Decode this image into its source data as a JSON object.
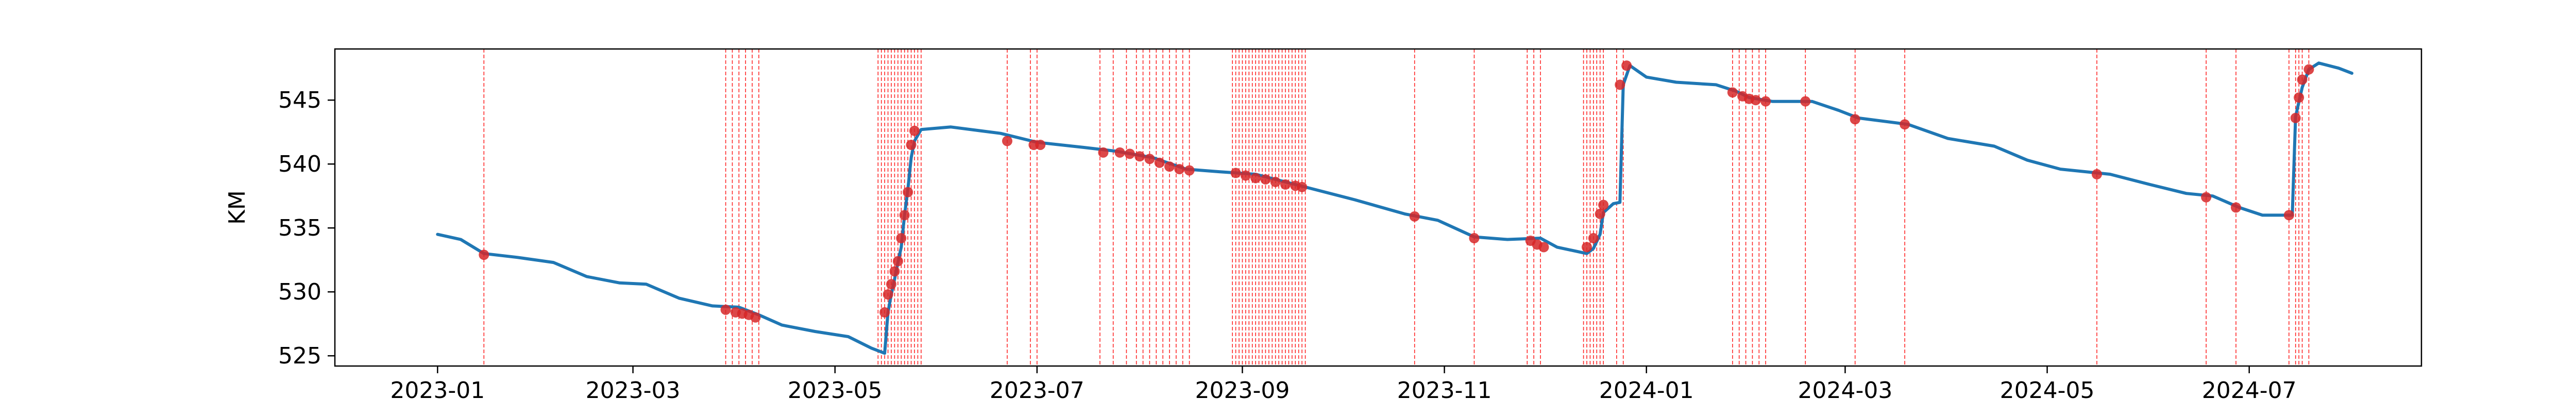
{
  "chart_data": {
    "type": "line",
    "title": "",
    "xlabel": "",
    "ylabel": "KM",
    "xlim": [
      "2022-12-01",
      "2024-08-22"
    ],
    "ylim": [
      524.2,
      549.0
    ],
    "x_ticks": [
      "2023-01",
      "2023-03",
      "2023-05",
      "2023-07",
      "2023-09",
      "2023-11",
      "2024-01",
      "2024-03",
      "2024-05",
      "2024-07"
    ],
    "y_ticks": [
      525,
      530,
      535,
      540,
      545
    ],
    "grid": false,
    "legend": "none",
    "series": [
      {
        "type": "line",
        "color": "#1f77b4",
        "points": [
          [
            "2023-01-01",
            534.5
          ],
          [
            "2023-01-08",
            534.1
          ],
          [
            "2023-01-15",
            533.0
          ],
          [
            "2023-01-25",
            532.7
          ],
          [
            "2023-02-05",
            532.3
          ],
          [
            "2023-02-15",
            531.2
          ],
          [
            "2023-02-25",
            530.7
          ],
          [
            "2023-03-05",
            530.6
          ],
          [
            "2023-03-15",
            529.5
          ],
          [
            "2023-03-25",
            528.9
          ],
          [
            "2023-04-02",
            528.8
          ],
          [
            "2023-04-08",
            528.2
          ],
          [
            "2023-04-15",
            527.4
          ],
          [
            "2023-04-25",
            526.9
          ],
          [
            "2023-05-05",
            526.5
          ],
          [
            "2023-05-12",
            525.6
          ],
          [
            "2023-05-16",
            525.2
          ],
          [
            "2023-05-17",
            528.4
          ],
          [
            "2023-05-18",
            529.8
          ],
          [
            "2023-05-19",
            531.0
          ],
          [
            "2023-05-20",
            532.3
          ],
          [
            "2023-05-21",
            533.5
          ],
          [
            "2023-05-22",
            536.0
          ],
          [
            "2023-05-23",
            538.0
          ],
          [
            "2023-05-24",
            540.5
          ],
          [
            "2023-05-25",
            541.8
          ],
          [
            "2023-05-27",
            542.7
          ],
          [
            "2023-06-05",
            542.9
          ],
          [
            "2023-06-20",
            542.4
          ],
          [
            "2023-07-01",
            541.7
          ],
          [
            "2023-07-15",
            541.3
          ],
          [
            "2023-07-25",
            541.0
          ],
          [
            "2023-08-05",
            540.5
          ],
          [
            "2023-08-15",
            539.6
          ],
          [
            "2023-08-25",
            539.4
          ],
          [
            "2023-09-05",
            539.2
          ],
          [
            "2023-09-20",
            538.2
          ],
          [
            "2023-10-05",
            537.2
          ],
          [
            "2023-10-20",
            536.1
          ],
          [
            "2023-10-30",
            535.6
          ],
          [
            "2023-11-10",
            534.3
          ],
          [
            "2023-11-20",
            534.1
          ],
          [
            "2023-11-30",
            534.2
          ],
          [
            "2023-12-05",
            533.5
          ],
          [
            "2023-12-14",
            533.0
          ],
          [
            "2023-12-16",
            533.4
          ],
          [
            "2023-12-18",
            534.5
          ],
          [
            "2023-12-19",
            536.2
          ],
          [
            "2023-12-22",
            536.9
          ],
          [
            "2023-12-24",
            537.0
          ],
          [
            "2023-12-25",
            546.2
          ],
          [
            "2023-12-27",
            547.7
          ],
          [
            "2024-01-01",
            546.8
          ],
          [
            "2024-01-10",
            546.4
          ],
          [
            "2024-01-22",
            546.2
          ],
          [
            "2024-01-28",
            545.7
          ],
          [
            "2024-02-01",
            545.2
          ],
          [
            "2024-02-08",
            544.9
          ],
          [
            "2024-02-20",
            544.9
          ],
          [
            "2024-02-28",
            544.2
          ],
          [
            "2024-03-05",
            543.6
          ],
          [
            "2024-03-20",
            543.1
          ],
          [
            "2024-04-01",
            542.0
          ],
          [
            "2024-04-15",
            541.4
          ],
          [
            "2024-04-25",
            540.3
          ],
          [
            "2024-05-05",
            539.6
          ],
          [
            "2024-05-20",
            539.2
          ],
          [
            "2024-06-01",
            538.4
          ],
          [
            "2024-06-12",
            537.7
          ],
          [
            "2024-06-20",
            537.5
          ],
          [
            "2024-06-28",
            536.6
          ],
          [
            "2024-07-05",
            536.0
          ],
          [
            "2024-07-14",
            536.0
          ],
          [
            "2024-07-15",
            543.7
          ],
          [
            "2024-07-17",
            546.0
          ],
          [
            "2024-07-19",
            547.4
          ],
          [
            "2024-07-22",
            547.9
          ],
          [
            "2024-07-28",
            547.5
          ],
          [
            "2024-08-01",
            547.1
          ]
        ]
      },
      {
        "type": "scatter",
        "color": "#d62728",
        "points": [
          [
            "2023-01-15",
            532.9
          ],
          [
            "2023-03-29",
            528.6
          ],
          [
            "2023-04-01",
            528.4
          ],
          [
            "2023-04-03",
            528.3
          ],
          [
            "2023-04-05",
            528.2
          ],
          [
            "2023-04-07",
            528.0
          ],
          [
            "2023-05-16",
            528.4
          ],
          [
            "2023-05-17",
            529.8
          ],
          [
            "2023-05-18",
            530.6
          ],
          [
            "2023-05-19",
            531.6
          ],
          [
            "2023-05-20",
            532.4
          ],
          [
            "2023-05-21",
            534.2
          ],
          [
            "2023-05-22",
            536.0
          ],
          [
            "2023-05-23",
            537.8
          ],
          [
            "2023-05-24",
            541.5
          ],
          [
            "2023-05-25",
            542.6
          ],
          [
            "2023-06-22",
            541.8
          ],
          [
            "2023-06-30",
            541.5
          ],
          [
            "2023-07-02",
            541.5
          ],
          [
            "2023-07-21",
            540.9
          ],
          [
            "2023-07-26",
            540.9
          ],
          [
            "2023-07-29",
            540.8
          ],
          [
            "2023-08-01",
            540.6
          ],
          [
            "2023-08-04",
            540.4
          ],
          [
            "2023-08-07",
            540.1
          ],
          [
            "2023-08-10",
            539.8
          ],
          [
            "2023-08-13",
            539.6
          ],
          [
            "2023-08-16",
            539.5
          ],
          [
            "2023-08-30",
            539.3
          ],
          [
            "2023-09-02",
            539.1
          ],
          [
            "2023-09-05",
            538.9
          ],
          [
            "2023-09-08",
            538.8
          ],
          [
            "2023-09-11",
            538.6
          ],
          [
            "2023-09-14",
            538.4
          ],
          [
            "2023-09-17",
            538.3
          ],
          [
            "2023-09-19",
            538.2
          ],
          [
            "2023-10-23",
            535.9
          ],
          [
            "2023-11-10",
            534.2
          ],
          [
            "2023-11-27",
            534.0
          ],
          [
            "2023-11-29",
            533.7
          ],
          [
            "2023-12-01",
            533.5
          ],
          [
            "2023-12-14",
            533.5
          ],
          [
            "2023-12-16",
            534.2
          ],
          [
            "2023-12-18",
            536.1
          ],
          [
            "2023-12-19",
            536.8
          ],
          [
            "2023-12-24",
            546.2
          ],
          [
            "2023-12-26",
            547.7
          ],
          [
            "2024-01-27",
            545.6
          ],
          [
            "2024-01-30",
            545.3
          ],
          [
            "2024-02-01",
            545.1
          ],
          [
            "2024-02-03",
            545.0
          ],
          [
            "2024-02-06",
            544.9
          ],
          [
            "2024-02-18",
            544.9
          ],
          [
            "2024-03-04",
            543.5
          ],
          [
            "2024-03-19",
            543.1
          ],
          [
            "2024-05-16",
            539.2
          ],
          [
            "2024-06-18",
            537.4
          ],
          [
            "2024-06-27",
            536.6
          ],
          [
            "2024-07-13",
            536.0
          ],
          [
            "2024-07-15",
            543.6
          ],
          [
            "2024-07-16",
            545.2
          ],
          [
            "2024-07-17",
            546.6
          ],
          [
            "2024-07-19",
            547.4
          ]
        ]
      }
    ],
    "vlines": {
      "color": "#ff0000",
      "dates": [
        "2023-01-15",
        "2023-03-29",
        "2023-03-31",
        "2023-04-02",
        "2023-04-04",
        "2023-04-06",
        "2023-04-08",
        "2023-05-14",
        "2023-05-15",
        "2023-05-16",
        "2023-05-17",
        "2023-05-18",
        "2023-05-19",
        "2023-05-20",
        "2023-05-21",
        "2023-05-22",
        "2023-05-23",
        "2023-05-24",
        "2023-05-25",
        "2023-05-26",
        "2023-05-27",
        "2023-06-22",
        "2023-06-29",
        "2023-07-01",
        "2023-07-20",
        "2023-07-24",
        "2023-07-28",
        "2023-07-31",
        "2023-08-02",
        "2023-08-04",
        "2023-08-06",
        "2023-08-08",
        "2023-08-10",
        "2023-08-12",
        "2023-08-14",
        "2023-08-16",
        "2023-08-29",
        "2023-08-30",
        "2023-08-31",
        "2023-09-01",
        "2023-09-02",
        "2023-09-03",
        "2023-09-04",
        "2023-09-05",
        "2023-09-06",
        "2023-09-07",
        "2023-09-08",
        "2023-09-09",
        "2023-09-10",
        "2023-09-11",
        "2023-09-12",
        "2023-09-13",
        "2023-09-14",
        "2023-09-15",
        "2023-09-16",
        "2023-09-17",
        "2023-09-18",
        "2023-09-19",
        "2023-09-20",
        "2023-10-23",
        "2023-11-10",
        "2023-11-26",
        "2023-11-28",
        "2023-11-30",
        "2023-12-13",
        "2023-12-14",
        "2023-12-15",
        "2023-12-16",
        "2023-12-17",
        "2023-12-18",
        "2023-12-19",
        "2023-12-23",
        "2023-12-25",
        "2024-01-27",
        "2024-01-29",
        "2024-01-31",
        "2024-02-02",
        "2024-02-04",
        "2024-02-06",
        "2024-02-18",
        "2024-03-04",
        "2024-03-19",
        "2024-05-16",
        "2024-06-18",
        "2024-06-27",
        "2024-07-13",
        "2024-07-15",
        "2024-07-16",
        "2024-07-17",
        "2024-07-19"
      ]
    }
  }
}
